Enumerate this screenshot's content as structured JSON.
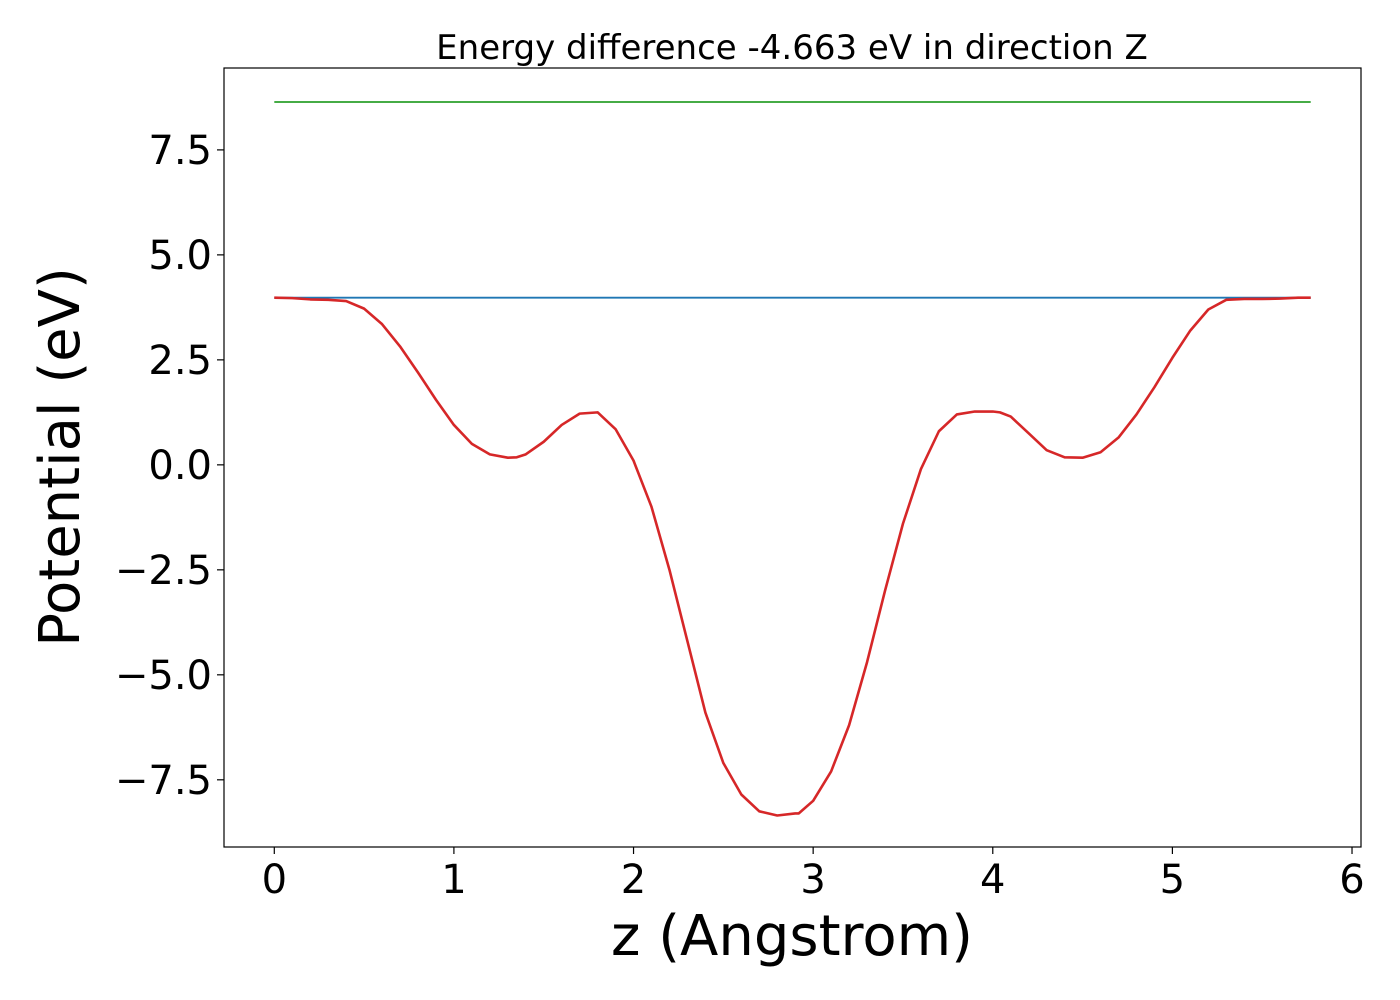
{
  "chart_data": {
    "type": "line",
    "title": "Energy difference -4.663 eV in direction Z",
    "xlabel": "z (Angstrom)",
    "ylabel": "Potential (eV)",
    "xlim": [
      -0.28,
      6.05
    ],
    "ylim": [
      -9.1,
      9.45
    ],
    "xticks": [
      0,
      1,
      2,
      3,
      4,
      5,
      6
    ],
    "xtick_labels": [
      "0",
      "1",
      "2",
      "3",
      "4",
      "5",
      "6"
    ],
    "yticks": [
      7.5,
      5.0,
      2.5,
      0.0,
      -2.5,
      -5.0,
      -7.5
    ],
    "ytick_labels": [
      "7.5",
      "5.0",
      "2.5",
      "0.0",
      "−2.5",
      "−5.0",
      "−7.5"
    ],
    "grid": false,
    "series": [
      {
        "color": "#2ca02c",
        "x": [
          0,
          5.77
        ],
        "y": [
          8.64,
          8.64
        ]
      },
      {
        "color": "#1f77b4",
        "x": [
          0,
          5.77
        ],
        "y": [
          3.98,
          3.98
        ]
      },
      {
        "color": "#d62728",
        "x": [
          0,
          0.1,
          0.2,
          0.3,
          0.4,
          0.5,
          0.6,
          0.7,
          0.8,
          0.9,
          1.0,
          1.1,
          1.2,
          1.3,
          1.35,
          1.4,
          1.5,
          1.6,
          1.7,
          1.8,
          1.9,
          2.0,
          2.1,
          2.2,
          2.3,
          2.4,
          2.5,
          2.6,
          2.7,
          2.8,
          2.9,
          2.92,
          3.0,
          3.1,
          3.2,
          3.3,
          3.4,
          3.5,
          3.6,
          3.7,
          3.8,
          3.9,
          4.0,
          4.04,
          4.1,
          4.2,
          4.3,
          4.4,
          4.5,
          4.6,
          4.7,
          4.8,
          4.9,
          5.0,
          5.1,
          5.2,
          5.3,
          5.4,
          5.5,
          5.6,
          5.7,
          5.77
        ],
        "y": [
          3.98,
          3.97,
          3.94,
          3.93,
          3.9,
          3.72,
          3.35,
          2.82,
          2.2,
          1.55,
          0.95,
          0.5,
          0.25,
          0.17,
          0.18,
          0.25,
          0.55,
          0.95,
          1.22,
          1.25,
          0.85,
          0.1,
          -1.0,
          -2.5,
          -4.2,
          -5.9,
          -7.1,
          -7.85,
          -8.25,
          -8.35,
          -8.3,
          -8.3,
          -8.0,
          -7.3,
          -6.2,
          -4.7,
          -3.0,
          -1.4,
          -0.1,
          0.8,
          1.2,
          1.27,
          1.27,
          1.25,
          1.15,
          0.75,
          0.35,
          0.18,
          0.17,
          0.3,
          0.65,
          1.2,
          1.85,
          2.55,
          3.2,
          3.7,
          3.93,
          3.95,
          3.95,
          3.96,
          3.98,
          3.98
        ]
      }
    ]
  }
}
